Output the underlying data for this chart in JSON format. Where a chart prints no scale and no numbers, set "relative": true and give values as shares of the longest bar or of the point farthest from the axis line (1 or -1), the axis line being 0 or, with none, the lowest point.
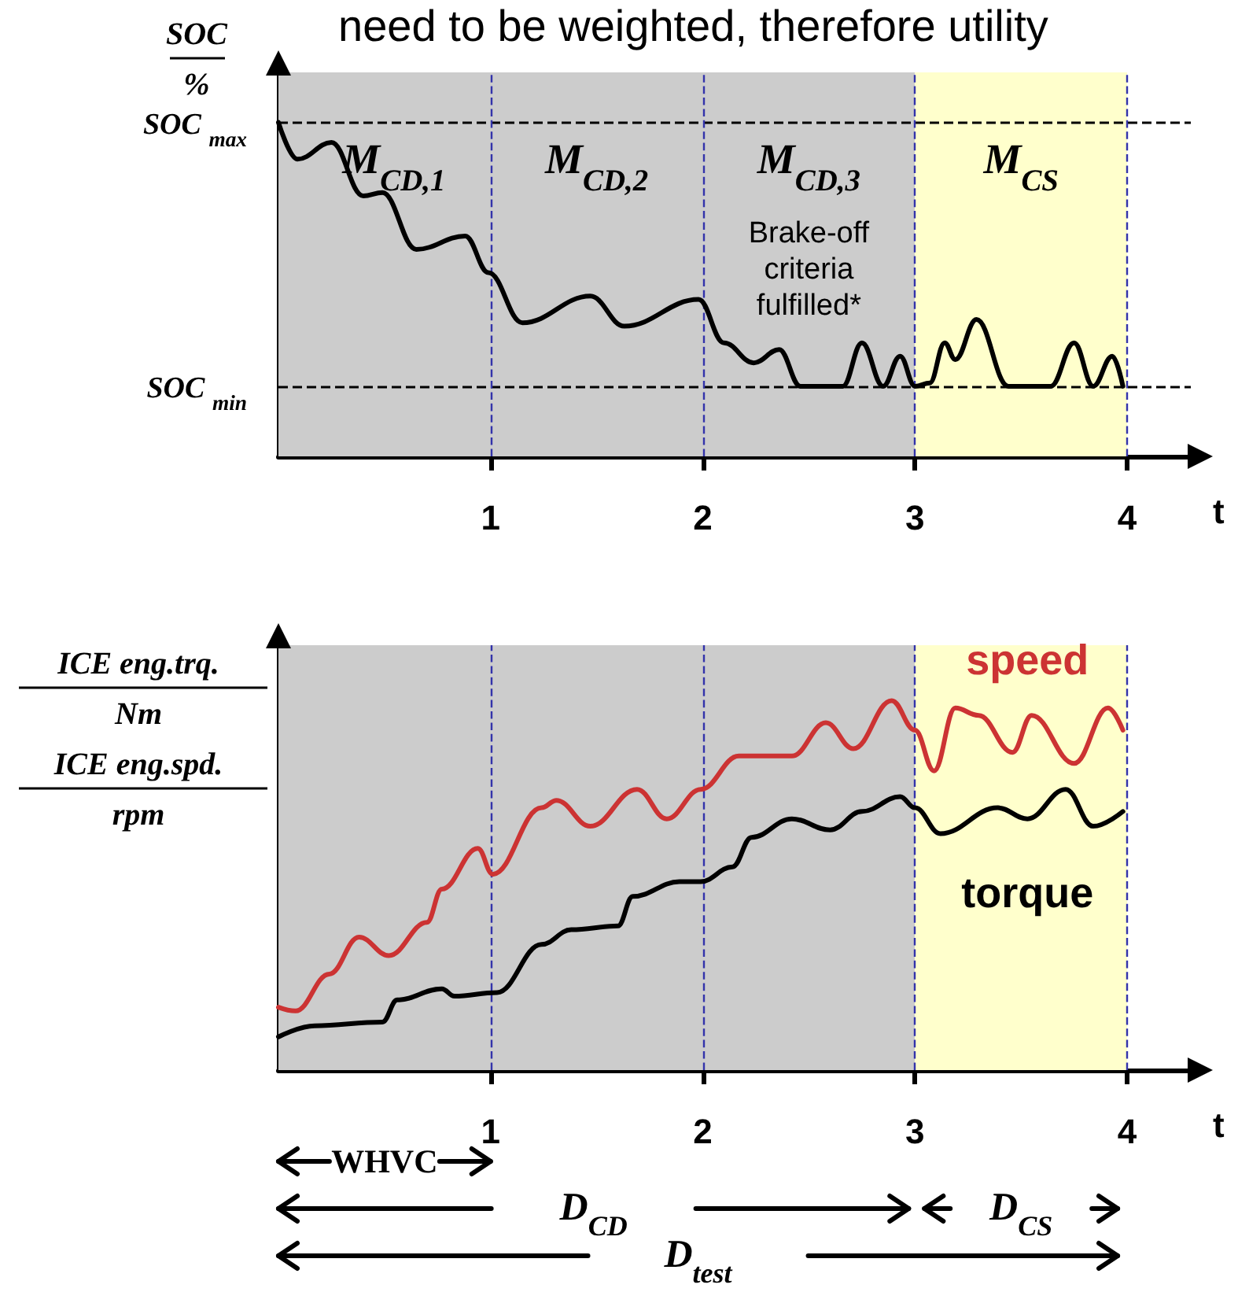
{
  "chart_data": [
    {
      "type": "line",
      "relative": true,
      "title": "need to be weighted, therefore utility",
      "xlabel": "t",
      "ylabel": "SOC\n%",
      "xlim": [
        0,
        4.3
      ],
      "xticks": [
        1,
        2,
        3,
        4
      ],
      "series": [
        {
          "color": "#000000",
          "x": [
            0,
            0.09,
            0.25,
            0.4,
            0.49,
            0.65,
            0.88,
            0.99,
            1.15,
            1.47,
            1.63,
            1.98,
            2.1,
            2.24,
            2.36,
            2.46,
            2.66,
            2.75,
            2.85,
            2.93,
            3,
            3.07,
            3.14,
            3.19,
            3.29,
            3.44,
            3.64,
            3.75,
            3.84,
            3.93,
            3.98
          ],
          "values": [
            1,
            0.89,
            0.94,
            0.78,
            0.79,
            0.62,
            0.66,
            0.55,
            0.4,
            0.48,
            0.39,
            0.47,
            0.34,
            0.28,
            0.32,
            0.21,
            0.21,
            0.34,
            0.21,
            0.3,
            0.21,
            0.22,
            0.34,
            0.29,
            0.41,
            0.21,
            0.21,
            0.34,
            0.21,
            0.3,
            0.21
          ]
        }
      ],
      "ref_lines": [
        {
          "axis": "y",
          "value": 1,
          "label": "SOC $_{max}$",
          "color": "#000000",
          "line_style": "dashed"
        },
        {
          "axis": "y",
          "value": 0.21,
          "label": "SOC $_{min}$",
          "color": "#000000",
          "line_style": "dashed"
        },
        {
          "axis": "x",
          "value": 1,
          "color": "#3333aa",
          "line_style": "dashed"
        },
        {
          "axis": "x",
          "value": 2,
          "color": "#3333aa",
          "line_style": "dashed"
        },
        {
          "axis": "x",
          "value": 3,
          "color": "#3333aa",
          "line_style": "dashed"
        },
        {
          "axis": "x",
          "value": 4,
          "color": "#3333aa",
          "line_style": "dashed"
        }
      ],
      "bands": [
        {
          "axis": "x",
          "from": 0,
          "to": 3,
          "color": "#cccccc"
        },
        {
          "axis": "x",
          "from": 3,
          "to": 4,
          "color": "#ffffcc"
        }
      ],
      "annotations": [
        "M$_{CD,1}$",
        "M$_{CD,2}$",
        "M$_{CD,3}$",
        "M$_{CS}$",
        "Brake-off\ncriteria\nfulfilled*"
      ]
    },
    {
      "type": "line",
      "relative": true,
      "xlabel": "t",
      "ylabel": "ICE eng.trq.\nNm\nICE eng.spd.\nrpm",
      "xlim": [
        0,
        4.3
      ],
      "xticks": [
        1,
        2,
        3,
        4
      ],
      "series": [
        {
          "name": "speed",
          "color": "#cc3333",
          "x": [
            0,
            0.08,
            0.24,
            0.38,
            0.52,
            0.7,
            0.77,
            0.94,
            1.01,
            1.24,
            1.31,
            1.47,
            1.69,
            1.83,
            1.99,
            2.17,
            2.42,
            2.58,
            2.71,
            2.89,
            3,
            3.09,
            3.19,
            3.3,
            3.46,
            3.55,
            3.75,
            3.91,
            3.98
          ],
          "values": [
            0.17,
            0.16,
            0.26,
            0.36,
            0.31,
            0.4,
            0.49,
            0.6,
            0.53,
            0.71,
            0.73,
            0.66,
            0.76,
            0.68,
            0.76,
            0.85,
            0.85,
            0.94,
            0.87,
            1,
            0.92,
            0.81,
            0.98,
            0.96,
            0.86,
            0.96,
            0.83,
            0.98,
            0.92
          ]
        },
        {
          "name": "torque",
          "color": "#000000",
          "x": [
            0,
            0.17,
            0.49,
            0.56,
            0.77,
            0.83,
            1.03,
            1.24,
            1.38,
            1.6,
            1.67,
            1.89,
            1.99,
            2.14,
            2.23,
            2.42,
            2.6,
            2.75,
            2.93,
            3,
            3.12,
            3.39,
            3.53,
            3.71,
            3.84,
            3.98
          ],
          "values": [
            0.09,
            0.12,
            0.13,
            0.19,
            0.22,
            0.2,
            0.21,
            0.34,
            0.38,
            0.39,
            0.47,
            0.51,
            0.51,
            0.55,
            0.63,
            0.68,
            0.65,
            0.7,
            0.74,
            0.71,
            0.64,
            0.71,
            0.68,
            0.76,
            0.66,
            0.7
          ]
        }
      ],
      "ref_lines": [
        {
          "axis": "x",
          "value": 1,
          "color": "#3333aa",
          "line_style": "dashed"
        },
        {
          "axis": "x",
          "value": 2,
          "color": "#3333aa",
          "line_style": "dashed"
        },
        {
          "axis": "x",
          "value": 3,
          "color": "#3333aa",
          "line_style": "dashed"
        },
        {
          "axis": "x",
          "value": 4,
          "color": "#3333aa",
          "line_style": "dashed"
        }
      ],
      "bands": [
        {
          "axis": "x",
          "from": 0,
          "to": 3,
          "color": "#cccccc"
        },
        {
          "axis": "x",
          "from": 3,
          "to": 4,
          "color": "#ffffcc"
        }
      ],
      "annotations": [
        "WHVC",
        "D$_{CD}$",
        "D$_{CS}$",
        "D$_{test}$"
      ]
    }
  ]
}
